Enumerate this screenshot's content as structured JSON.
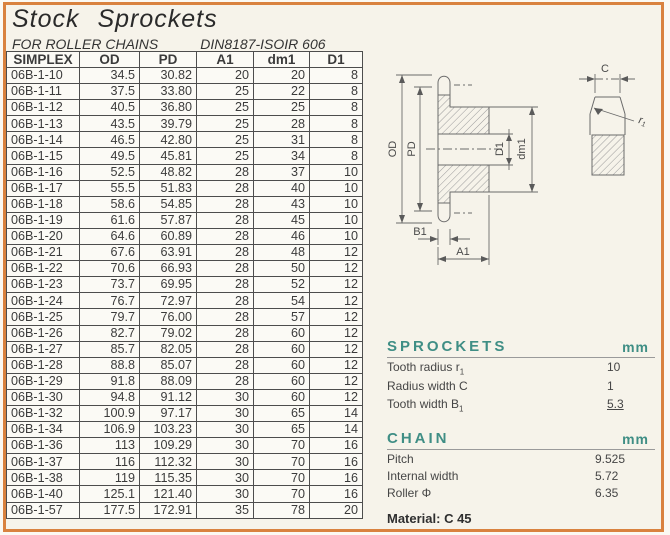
{
  "header": {
    "title": "Stock Sprockets",
    "subtitle_left": "FOR ROLLER CHAINS",
    "subtitle_right": "DIN8187-ISOIR 606"
  },
  "table": {
    "columns": [
      "SIMPLEX",
      "OD",
      "PD",
      "A1",
      "dm1",
      "D1"
    ],
    "rows": [
      [
        "06B-1-10",
        "34.5",
        "30.82",
        "20",
        "20",
        "8"
      ],
      [
        "06B-1-11",
        "37.5",
        "33.80",
        "25",
        "22",
        "8"
      ],
      [
        "06B-1-12",
        "40.5",
        "36.80",
        "25",
        "25",
        "8"
      ],
      [
        "06B-1-13",
        "43.5",
        "39.79",
        "25",
        "28",
        "8"
      ],
      [
        "06B-1-14",
        "46.5",
        "42.80",
        "25",
        "31",
        "8"
      ],
      [
        "06B-1-15",
        "49.5",
        "45.81",
        "25",
        "34",
        "8"
      ],
      [
        "06B-1-16",
        "52.5",
        "48.82",
        "28",
        "37",
        "10"
      ],
      [
        "06B-1-17",
        "55.5",
        "51.83",
        "28",
        "40",
        "10"
      ],
      [
        "06B-1-18",
        "58.6",
        "54.85",
        "28",
        "43",
        "10"
      ],
      [
        "06B-1-19",
        "61.6",
        "57.87",
        "28",
        "45",
        "10"
      ],
      [
        "06B-1-20",
        "64.6",
        "60.89",
        "28",
        "46",
        "10"
      ],
      [
        "06B-1-21",
        "67.6",
        "63.91",
        "28",
        "48",
        "12"
      ],
      [
        "06B-1-22",
        "70.6",
        "66.93",
        "28",
        "50",
        "12"
      ],
      [
        "06B-1-23",
        "73.7",
        "69.95",
        "28",
        "52",
        "12"
      ],
      [
        "06B-1-24",
        "76.7",
        "72.97",
        "28",
        "54",
        "12"
      ],
      [
        "06B-1-25",
        "79.7",
        "76.00",
        "28",
        "57",
        "12"
      ],
      [
        "06B-1-26",
        "82.7",
        "79.02",
        "28",
        "60",
        "12"
      ],
      [
        "06B-1-27",
        "85.7",
        "82.05",
        "28",
        "60",
        "12"
      ],
      [
        "06B-1-28",
        "88.8",
        "85.07",
        "28",
        "60",
        "12"
      ],
      [
        "06B-1-29",
        "91.8",
        "88.09",
        "28",
        "60",
        "12"
      ],
      [
        "06B-1-30",
        "94.8",
        "91.12",
        "30",
        "60",
        "12"
      ],
      [
        "06B-1-32",
        "100.9",
        "97.17",
        "30",
        "65",
        "14"
      ],
      [
        "06B-1-34",
        "106.9",
        "103.23",
        "30",
        "65",
        "14"
      ],
      [
        "06B-1-36",
        "113",
        "109.29",
        "30",
        "70",
        "16"
      ],
      [
        "06B-1-37",
        "116",
        "112.32",
        "30",
        "70",
        "16"
      ],
      [
        "06B-1-38",
        "119",
        "115.35",
        "30",
        "70",
        "16"
      ],
      [
        "06B-1-40",
        "125.1",
        "121.40",
        "30",
        "70",
        "16"
      ],
      [
        "06B-1-57",
        "177.5",
        "172.91",
        "35",
        "78",
        "20"
      ]
    ]
  },
  "drawing": {
    "labels": {
      "od": "OD",
      "pd": "PD",
      "d1": "D1",
      "dm1": "dm1",
      "b1": "B1",
      "a1": "A1",
      "c": "C",
      "r": "r",
      "r_sub": "1"
    }
  },
  "specs": {
    "sprockets": {
      "title": "SPROCKETS",
      "unit": "mm",
      "rows": [
        {
          "label": "Tooth radius r",
          "sub": "1",
          "value": "10"
        },
        {
          "label": "Radius width C",
          "sub": "",
          "value": "1"
        },
        {
          "label": "Tooth width B",
          "sub": "1",
          "value": "5.3"
        }
      ]
    },
    "chain": {
      "title": "CHAIN",
      "unit": "mm",
      "rows": [
        {
          "label": "Pitch",
          "sub": "",
          "value": "9.525"
        },
        {
          "label": "Internal width",
          "sub": "",
          "value": "5.72"
        },
        {
          "label": "Roller Φ",
          "sub": "",
          "value": "6.35"
        }
      ]
    },
    "material": "Material: C 45"
  },
  "colors": {
    "frame_orange": "#d9823f",
    "heading_teal": "#3f8e85",
    "page_cream": "#f6f3ea"
  }
}
